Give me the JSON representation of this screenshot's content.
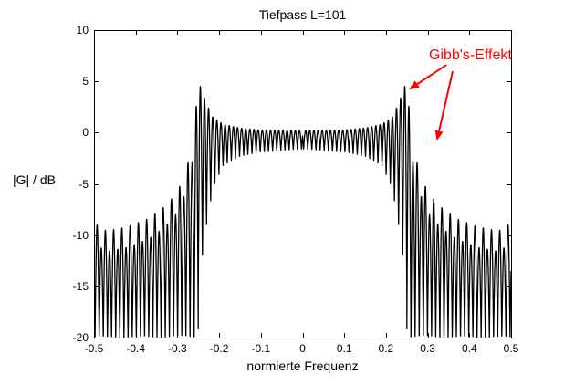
{
  "chart_data": {
    "type": "line",
    "title": "Tiefpass L=101",
    "xlabel": "normierte Frequenz",
    "ylabel": "|G| / dB",
    "xlim": [
      -0.5,
      0.5
    ],
    "ylim": [
      -20,
      10
    ],
    "grid": false,
    "line_color": "#000000",
    "x_ticks": {
      "values": [
        -0.5,
        -0.4,
        -0.3,
        -0.2,
        -0.1,
        0,
        0.1,
        0.2,
        0.3,
        0.4,
        0.5
      ],
      "labels": [
        "-0.5",
        "-0.4",
        "-0.3",
        "-0.2",
        "-0.1",
        "0",
        "0.1",
        "0.2",
        "0.3",
        "0.4",
        "0.5"
      ]
    },
    "y_ticks": {
      "values": [
        10,
        5,
        0,
        -5,
        -10,
        -15,
        -20
      ],
      "labels": [
        "10",
        "5",
        "0",
        "-5",
        "-10",
        "-15",
        "-20"
      ]
    },
    "series": [
      {
        "name": "|G| / dB",
        "model": "magnitude response of truncated (rectangular-window) ideal lowpass, Gibbs ripple",
        "L": 101,
        "cutoff": 0.25,
        "ripple_period": 0.0099,
        "clip_db": -20,
        "lobe_alternation_db": 2.0,
        "symmetric": true,
        "passband_top_env": [
          [
            0,
            0.2
          ],
          [
            0.1,
            0.25
          ],
          [
            0.15,
            0.45
          ],
          [
            0.19,
            0.8
          ],
          [
            0.215,
            1.5
          ],
          [
            0.23,
            2.8
          ],
          [
            0.245,
            4.5
          ],
          [
            0.25,
            4.8
          ]
        ],
        "passband_bottom_env": [
          [
            0,
            -1.6
          ],
          [
            0.1,
            -1.9
          ],
          [
            0.15,
            -2.3
          ],
          [
            0.19,
            -3.2
          ],
          [
            0.215,
            -5.5
          ],
          [
            0.23,
            -9.0
          ],
          [
            0.24,
            -12.0
          ],
          [
            0.25,
            -15.5
          ]
        ],
        "stopband_peak_env": [
          [
            0.25,
            4.2
          ],
          [
            0.256,
            2.2
          ],
          [
            0.263,
            -0.5
          ],
          [
            0.272,
            -2.6
          ],
          [
            0.285,
            -4.3
          ],
          [
            0.3,
            -5.8
          ],
          [
            0.33,
            -7.2
          ],
          [
            0.37,
            -8.4
          ],
          [
            0.42,
            -9.2
          ],
          [
            0.47,
            -9.6
          ],
          [
            0.5,
            -8.8
          ]
        ]
      }
    ],
    "annotation": {
      "text": "Gibb's-Effekt",
      "color": "#ff0000",
      "arrows": [
        {
          "from": [
            0.345,
            6.6
          ],
          "to": [
            0.255,
            4.2
          ]
        },
        {
          "from": [
            0.36,
            6.0
          ],
          "to": [
            0.322,
            -0.8
          ]
        }
      ]
    }
  }
}
